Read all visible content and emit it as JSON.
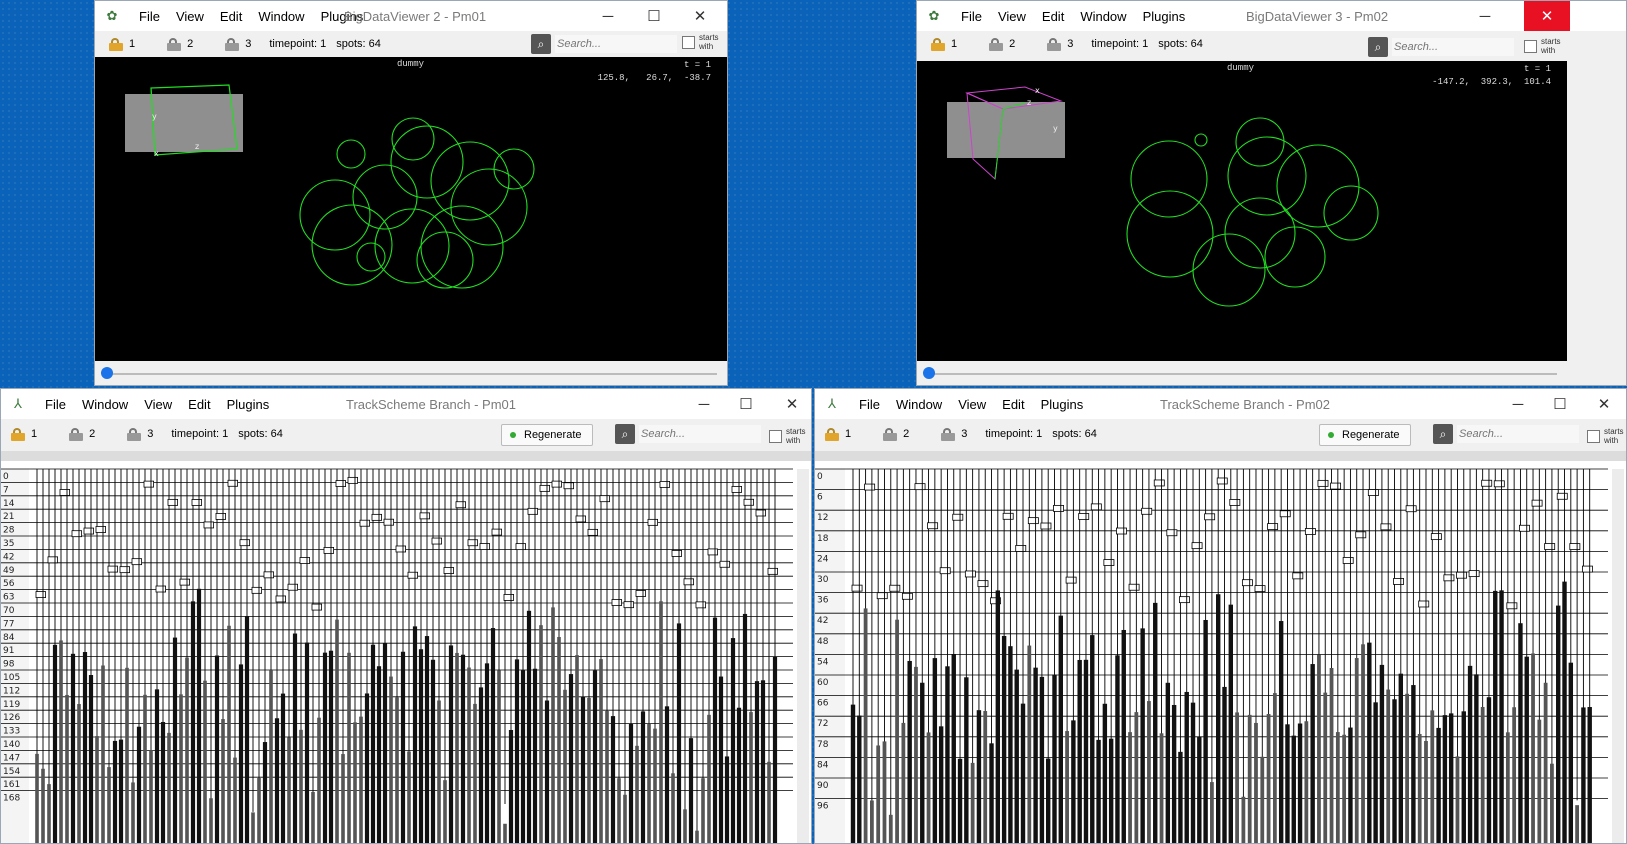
{
  "bdv": [
    {
      "title": "BigDataViewer 2 - Pm01",
      "menu": [
        "File",
        "View",
        "Edit",
        "Window",
        "Plugins"
      ],
      "locks": [
        "1",
        "2",
        "3"
      ],
      "timepoint": "timepoint: 1",
      "spots": "spots: 64",
      "search_placeholder": "Search...",
      "starts_with": [
        "starts",
        "with"
      ],
      "source_name": "dummy",
      "time_label": "t = 1",
      "coords": "125.8,   26.7,  -38.7",
      "slider_value": 0
    },
    {
      "title": "BigDataViewer 3 - Pm02",
      "menu": [
        "File",
        "View",
        "Edit",
        "Window",
        "Plugins"
      ],
      "locks": [
        "1",
        "2",
        "3"
      ],
      "timepoint": "timepoint: 1",
      "spots": "spots: 64",
      "search_placeholder": "Search...",
      "starts_with": [
        "starts",
        "with"
      ],
      "source_name": "dummy",
      "time_label": "t = 1",
      "coords": "-147.2,  392.3,  101.4",
      "slider_value": 0
    }
  ],
  "trackscheme": [
    {
      "title": "TrackScheme Branch - Pm01",
      "menu": [
        "File",
        "Window",
        "View",
        "Edit",
        "Plugins"
      ],
      "locks": [
        "1",
        "2",
        "3"
      ],
      "timepoint": "timepoint: 1",
      "spots": "spots: 64",
      "regenerate_label": "Regenerate",
      "search_placeholder": "Search...",
      "starts_with": [
        "starts",
        "with"
      ],
      "axis_ticks": [
        "0",
        "7",
        "14",
        "21",
        "28",
        "35",
        "42",
        "49",
        "56",
        "63",
        "70",
        "77",
        "84",
        "91",
        "98",
        "105",
        "112",
        "119",
        "126",
        "133",
        "140",
        "147",
        "154",
        "161",
        "168"
      ]
    },
    {
      "title": "TrackScheme Branch - Pm02",
      "menu": [
        "File",
        "Window",
        "View",
        "Edit",
        "Plugins"
      ],
      "locks": [
        "1",
        "2",
        "3"
      ],
      "timepoint": "timepoint: 1",
      "spots": "spots: 64",
      "regenerate_label": "Regenerate",
      "search_placeholder": "Search...",
      "starts_with": [
        "starts",
        "with"
      ],
      "axis_ticks": [
        "0",
        "6",
        "12",
        "18",
        "24",
        "30",
        "36",
        "42",
        "48",
        "54",
        "60",
        "66",
        "72",
        "78",
        "84",
        "90",
        "96"
      ]
    }
  ],
  "colors": {
    "desktop": "#0a63b8",
    "spot": "#22dd22",
    "close_active": "#e81123",
    "slider_knob": "#1a73e8"
  }
}
